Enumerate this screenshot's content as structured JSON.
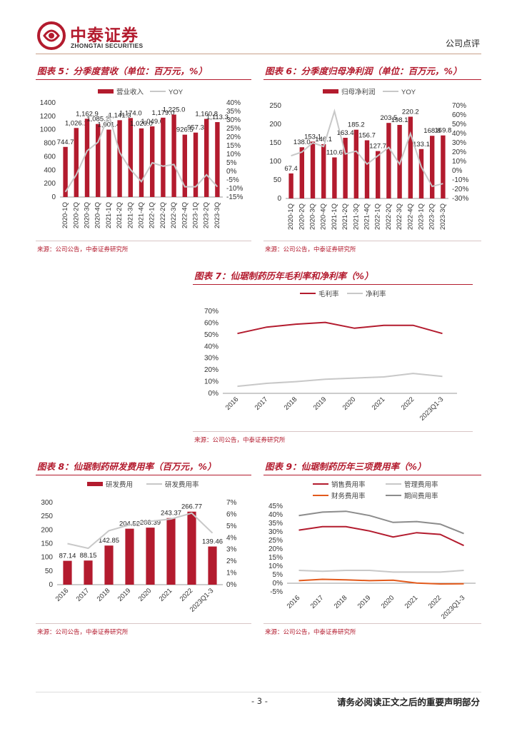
{
  "header": {
    "company_cn": "中泰证券",
    "company_en": "ZHONGTAI SECURITIES",
    "report_type": "公司点评",
    "brand_color": "#b31b2e"
  },
  "footer": {
    "page": "- 3 -",
    "note": "请务必阅读正文之后的重要声明部分"
  },
  "source_text": "来源：公司公告，中泰证券研究所",
  "chart_data": [
    {
      "id": "fig5",
      "type": "bar",
      "title": "图表 5：分季度营收（单位：百万元，%）",
      "categories": [
        "2020-1Q",
        "2020-2Q",
        "2020-3Q",
        "2020-4Q",
        "2021-1Q",
        "2021-2Q",
        "2021-3Q",
        "2021-4Q",
        "2022-1Q",
        "2022-2Q",
        "2022-3Q",
        "2022-4Q",
        "2023-1Q",
        "2023-2Q",
        "2023-3Q"
      ],
      "series": [
        {
          "name": "营业收入",
          "kind": "bar",
          "axis": "left",
          "color": "#b31b2e",
          "values": [
            744.7,
            1026.1,
            1162.9,
            1085.2,
            1001.4,
            1141.3,
            1174.0,
            1020.0,
            1049.6,
            1179.0,
            1225.0,
            926.5,
            957.3,
            1160.8,
            1113.3
          ],
          "labels": [
            "744.7",
            "1,026.1",
            "1,162.9",
            "1,085.2",
            "1,001.4",
            "1,141.3",
            "1,174.0",
            "1,020.0",
            "1,049.6",
            "1,179.0",
            "1,225.0",
            "926.5",
            "957.3",
            "1,160.8",
            "1,113.3"
          ]
        },
        {
          "name": "YOY",
          "kind": "line",
          "axis": "right",
          "color": "#c8c8c8",
          "values": [
            -12,
            -2,
            12,
            17,
            33,
            11,
            1,
            -6,
            5,
            3,
            4,
            -9,
            -9,
            -2,
            -9
          ]
        }
      ],
      "y_left": {
        "min": 0,
        "max": 1400,
        "step": 200,
        "ticks": [
          "0",
          "200",
          "400",
          "600",
          "800",
          "1000",
          "1200",
          "1400"
        ]
      },
      "y_right": {
        "min": -15,
        "max": 40,
        "step": 5,
        "ticks": [
          "-15%",
          "-10%",
          "-5%",
          "0%",
          "5%",
          "10%",
          "15%",
          "20%",
          "25%",
          "30%",
          "35%",
          "40%"
        ]
      },
      "legend": "top"
    },
    {
      "id": "fig6",
      "type": "bar",
      "title": "图表 6：分季度归母净利润（单位：百万元，%）",
      "categories": [
        "2020-1Q",
        "2020-2Q",
        "2020-3Q",
        "2020-4Q",
        "2021-1Q",
        "2021-2Q",
        "2021-3Q",
        "2021-4Q",
        "2022-1Q",
        "2022-2Q",
        "2022-3Q",
        "2022-4Q",
        "2023-1Q",
        "2023-2Q",
        "2023-3Q"
      ],
      "series": [
        {
          "name": "归母净利润",
          "kind": "bar",
          "axis": "left",
          "color": "#b31b2e",
          "values": [
            67.4,
            138.0,
            153.1,
            146.1,
            110.6,
            163.4,
            185.2,
            156.7,
            127.7,
            203.5,
            198.1,
            220.2,
            133.1,
            168.8,
            169.8
          ],
          "labels": [
            "67.4",
            "138.0",
            "153.1",
            "146.1",
            "110.6",
            "163.4",
            "185.2",
            "156.7",
            "127.7",
            "203.5",
            "198.1",
            "220.2",
            "133.1",
            "168.8",
            "169.8"
          ]
        },
        {
          "name": "YOY",
          "kind": "line",
          "axis": "right",
          "color": "#c8c8c8",
          "values": [
            16,
            20,
            30,
            26,
            64,
            18,
            21,
            7,
            16,
            25,
            7,
            40,
            4,
            -17,
            -14
          ]
        }
      ],
      "y_left": {
        "min": 0,
        "max": 250,
        "step": 50,
        "ticks": [
          "0",
          "50",
          "100",
          "150",
          "200",
          "250"
        ]
      },
      "y_right": {
        "min": -30,
        "max": 70,
        "step": 10,
        "ticks": [
          "-30%",
          "-20%",
          "-10%",
          "0%",
          "10%",
          "20%",
          "30%",
          "40%",
          "50%",
          "60%",
          "70%"
        ]
      },
      "legend": "top"
    },
    {
      "id": "fig7",
      "type": "line",
      "title": "图表 7：仙琚制药历年毛利率和净利率（%）",
      "categories": [
        "2016",
        "2017",
        "2018",
        "2019",
        "2020",
        "2021",
        "2022",
        "2023Q1-3"
      ],
      "series": [
        {
          "name": "毛利率",
          "color": "#b31b2e",
          "values": [
            51,
            56.5,
            59,
            60.5,
            55.5,
            58,
            58,
            51
          ]
        },
        {
          "name": "净利率",
          "color": "#c8c8c8",
          "values": [
            6,
            8.5,
            10,
            12,
            13,
            14,
            17,
            14.5
          ]
        }
      ],
      "y_left": {
        "min": 0,
        "max": 70,
        "step": 10,
        "ticks": [
          "0%",
          "10%",
          "20%",
          "30%",
          "40%",
          "50%",
          "60%",
          "70%"
        ]
      },
      "legend": "top"
    },
    {
      "id": "fig8",
      "type": "bar",
      "title": "图表 8：仙琚制药研发费用率（百万元，%）",
      "categories": [
        "2016",
        "2017",
        "2018",
        "2019",
        "2020",
        "2021",
        "2022",
        "2023Q1-3"
      ],
      "series": [
        {
          "name": "研发费用",
          "kind": "bar",
          "axis": "left",
          "color": "#b31b2e",
          "values": [
            87.14,
            88.15,
            142.85,
            204.52,
            208.39,
            243.37,
            266.77,
            139.46
          ],
          "labels": [
            "87.14",
            "88.15",
            "142.85",
            "204.52",
            "208.39",
            "243.37",
            "266.77",
            "139.46"
          ]
        },
        {
          "name": "研发费用率",
          "kind": "line",
          "axis": "right",
          "color": "#c8c8c8",
          "values": [
            3.5,
            3.1,
            4.6,
            5.1,
            5.4,
            5.6,
            6.1,
            4.4
          ]
        }
      ],
      "y_left": {
        "min": 0,
        "max": 300,
        "step": 50,
        "ticks": [
          "0",
          "50",
          "100",
          "150",
          "200",
          "250",
          "300"
        ]
      },
      "y_right": {
        "min": 0,
        "max": 7,
        "step": 1,
        "ticks": [
          "0%",
          "1%",
          "2%",
          "3%",
          "4%",
          "5%",
          "6%",
          "7%"
        ]
      },
      "legend": "top"
    },
    {
      "id": "fig9",
      "type": "line",
      "title": "图表 9：仙琚制药历年三项费用率（%）",
      "categories": [
        "2016",
        "2017",
        "2018",
        "2019",
        "2020",
        "2021",
        "2022",
        "2023Q1-3"
      ],
      "series": [
        {
          "name": "销售费用率",
          "color": "#b31b2e",
          "values": [
            31,
            33,
            33,
            30.5,
            27,
            29.5,
            28.5,
            22
          ]
        },
        {
          "name": "管理费用率",
          "color": "#c8c8c8",
          "values": [
            7.5,
            7,
            7.5,
            7.5,
            6.5,
            6.5,
            6.5,
            7.5
          ]
        },
        {
          "name": "财务费用率",
          "color": "#e25a1c",
          "values": [
            1.5,
            2.3,
            2,
            1.5,
            1.8,
            0.1,
            -0.4,
            -0.3
          ]
        },
        {
          "name": "期间费用率",
          "color": "#8c8c8c",
          "values": [
            39.5,
            41.5,
            42,
            39.5,
            35.5,
            36,
            34.5,
            29
          ]
        }
      ],
      "y_left": {
        "min": -5,
        "max": 45,
        "step": 5,
        "ticks": [
          "-5%",
          "0%",
          "5%",
          "10%",
          "15%",
          "20%",
          "25%",
          "30%",
          "35%",
          "40%",
          "45%"
        ]
      },
      "legend": "top-two-rows"
    }
  ]
}
